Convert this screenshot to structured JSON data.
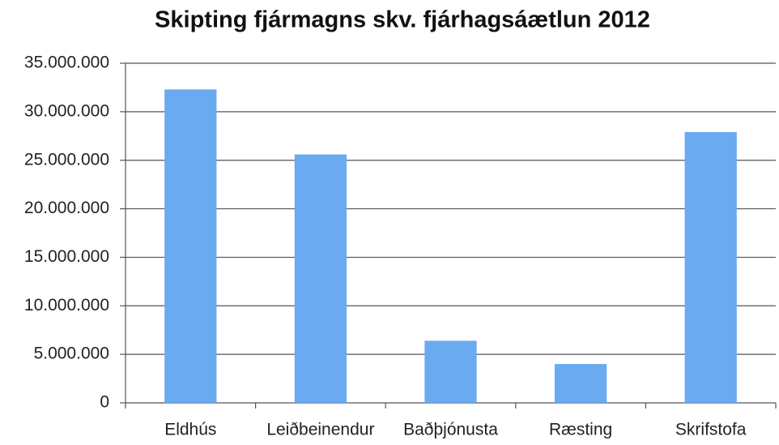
{
  "chart_data": {
    "type": "bar",
    "title": "Skipting fjármagns skv. fjárhagsáætlun 2012",
    "categories": [
      "Eldhús",
      "Leiðbeinendur",
      "Baðþjónusta",
      "Ræsting",
      "Skrifstofa"
    ],
    "values": [
      32300000,
      25600000,
      6400000,
      4000000,
      27900000
    ],
    "color": "#6aaaf0",
    "ylim": [
      0,
      35000000
    ],
    "yticks": [
      0,
      {
        "value": 5000000,
        "label": "5.000.000"
      },
      {
        "value": 10000000,
        "label": "10.000.000"
      },
      {
        "value": 15000000,
        "label": "15.000.000"
      },
      {
        "value": 20000000,
        "label": "20.000.000"
      },
      {
        "value": 25000000,
        "label": "25.000.000"
      },
      {
        "value": 30000000,
        "label": "30.000.000"
      },
      {
        "value": 35000000,
        "label": "35.000.000"
      }
    ],
    "grid": true
  }
}
